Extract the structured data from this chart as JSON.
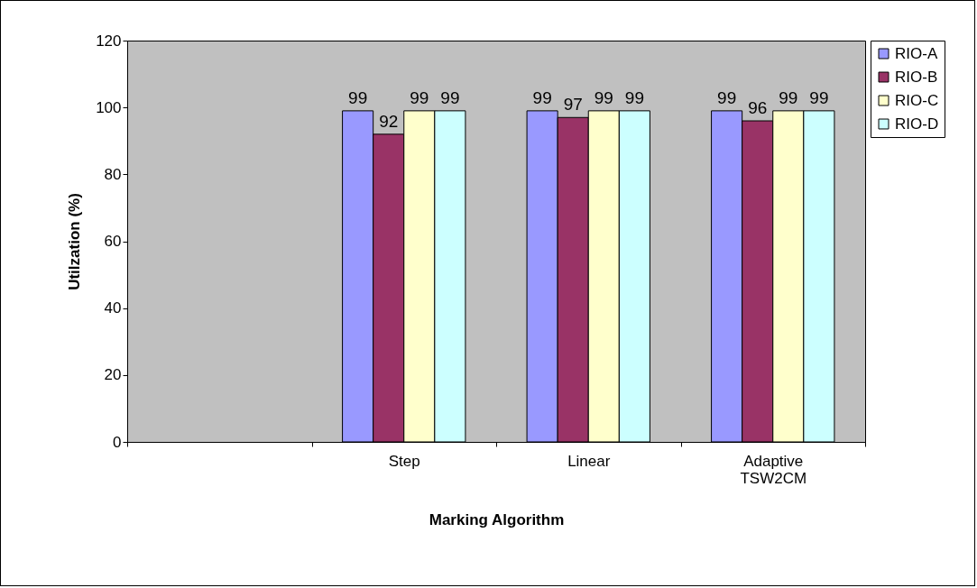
{
  "chart_data": {
    "type": "bar",
    "xlabel": "Marking Algorithm",
    "ylabel": "Utilzation (%)",
    "categories": [
      null,
      "Step",
      "Linear",
      "Adaptive TSW2CM"
    ],
    "series": [
      {
        "name": "RIO-A",
        "color": "#9999ff",
        "values": [
          null,
          99,
          99,
          99
        ]
      },
      {
        "name": "RIO-B",
        "color": "#993366",
        "values": [
          null,
          92,
          97,
          96
        ]
      },
      {
        "name": "RIO-C",
        "color": "#ffffcc",
        "values": [
          null,
          99,
          99,
          99
        ]
      },
      {
        "name": "RIO-D",
        "color": "#ccffff",
        "values": [
          null,
          99,
          99,
          99
        ]
      }
    ],
    "ylim": [
      0,
      120
    ],
    "yticks": [
      0,
      20,
      40,
      60,
      80,
      100,
      120
    ],
    "data_labels": true,
    "legend": "right",
    "grid": false
  }
}
